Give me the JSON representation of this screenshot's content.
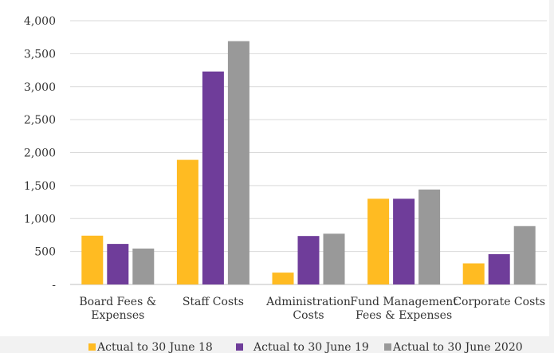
{
  "chart_data": {
    "type": "bar",
    "categories": [
      [
        "Board Fees &",
        "Expenses"
      ],
      [
        "Staff Costs"
      ],
      [
        "Administration",
        "Costs"
      ],
      [
        "Fund Management",
        "Fees & Expenses"
      ],
      [
        "Corporate Costs"
      ]
    ],
    "series": [
      {
        "name": "Actual to 30 June 18",
        "color": "#ffbb22",
        "values": [
          740,
          1890,
          180,
          1300,
          320
        ]
      },
      {
        "name": "Actual to 30 June 19",
        "color": "#6f3d9a",
        "values": [
          615,
          3230,
          735,
          1300,
          460
        ]
      },
      {
        "name": "Actual to 30 June 2020",
        "color": "#999999",
        "values": [
          545,
          3690,
          770,
          1440,
          885
        ]
      }
    ],
    "yticks": [
      "-",
      "500",
      "1,000",
      "1,500",
      "2,000",
      "2,500",
      "3,000",
      "3,500",
      "4,000"
    ],
    "ylim": [
      0,
      4000
    ],
    "grid": true,
    "legend_position": "bottom"
  }
}
